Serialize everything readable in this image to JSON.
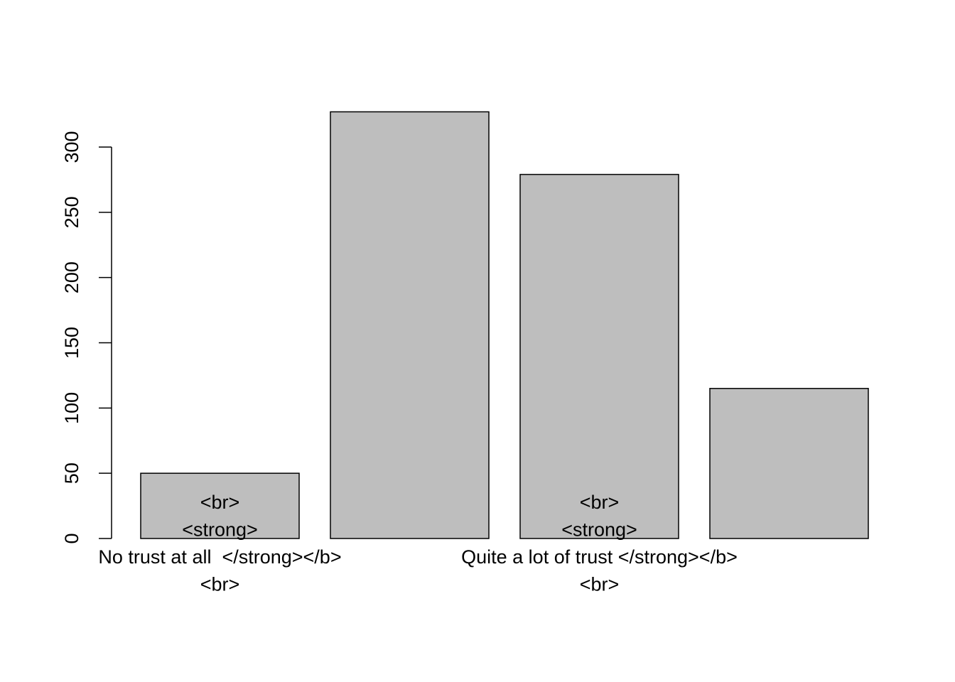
{
  "chart_data": {
    "type": "bar",
    "title": "",
    "xlabel": "",
    "ylabel": "",
    "ylim": [
      0,
      330
    ],
    "yticks": [
      0,
      50,
      100,
      150,
      200,
      250,
      300
    ],
    "grid": false,
    "legend": "none",
    "bar_color": "#bebebe",
    "categories": [
      {
        "lines": [
          "<br>",
          "<strong>",
          "No trust at all  </strong></b>",
          "<br>"
        ]
      },
      {
        "lines": []
      },
      {
        "lines": [
          "<br>",
          "<strong>",
          "Quite a lot of trust </strong></b>",
          "<br>"
        ]
      },
      {
        "lines": []
      }
    ],
    "values": [
      50,
      327,
      279,
      115
    ]
  }
}
